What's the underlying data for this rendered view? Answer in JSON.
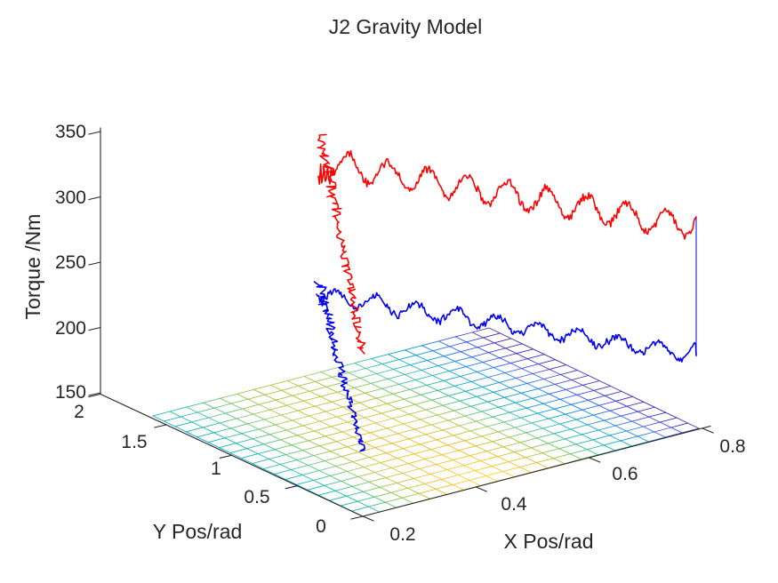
{
  "title": "J2 Gravity Model",
  "axes": {
    "x": {
      "label": "X Pos/rad",
      "ticks": [
        "0.2",
        "0.4",
        "0.6",
        "0.8"
      ]
    },
    "y": {
      "label": "Y Pos/rad",
      "ticks": [
        "2",
        "1.5",
        "1",
        "0.5",
        "0"
      ]
    },
    "z": {
      "label": "Torque /Nm",
      "ticks": [
        "350",
        "300",
        "250",
        "200",
        "150"
      ]
    }
  },
  "colors": {
    "background": "#ffffff",
    "axis": "#262626",
    "red_trace": "#ff0000",
    "blue_trace": "#0000ee",
    "colormap": "parula"
  },
  "chart_data": {
    "type": "line",
    "projection": "3d",
    "title": "J2 Gravity Model",
    "xlabel": "X Pos/rad",
    "ylabel": "Y Pos/rad",
    "zlabel": "Torque /Nm",
    "xlim": [
      0.2,
      0.8
    ],
    "ylim": [
      0,
      2
    ],
    "zlim": [
      150,
      350
    ],
    "x_ticks": [
      0.2,
      0.4,
      0.6,
      0.8
    ],
    "y_ticks": [
      0,
      0.5,
      1,
      1.5,
      2
    ],
    "z_ticks": [
      150,
      200,
      250,
      300,
      350
    ],
    "grid": false,
    "legend": null,
    "series": [
      {
        "name": "red-torque-trace",
        "color": "#ff0000",
        "description": "Noisy measured torque, ~9 oscillation bumps drifting downward; starts with a large vertical transient near x=0.25 reaching ~350 Nm and a tail sweeping down to the surface",
        "x": [
          0.25,
          0.3,
          0.35,
          0.4,
          0.45,
          0.5,
          0.55,
          0.6,
          0.65,
          0.7,
          0.75,
          0.8
        ],
        "apparent_torque_nm": [
          333,
          325,
          330,
          320,
          326,
          316,
          321,
          311,
          315,
          305,
          297,
          308
        ],
        "oscillation_cycles": 9.4,
        "noise_amplitude_nm": 9
      },
      {
        "name": "blue-torque-trace",
        "color": "#0000ee",
        "description": "Noisy measured torque, smaller bumps drifting downward; start transient near x=0.25 and a tail sweeping down through the surface; vertical connector at x=0.8 jumps up to the red trace end",
        "x": [
          0.25,
          0.3,
          0.35,
          0.4,
          0.45,
          0.5,
          0.55,
          0.6,
          0.65,
          0.7,
          0.75,
          0.8
        ],
        "apparent_torque_nm": [
          229,
          224,
          227,
          220,
          224,
          216,
          219,
          212,
          214,
          206,
          200,
          209
        ],
        "oscillation_cycles": 9.4,
        "noise_amplitude_nm": 7
      }
    ],
    "surface": {
      "name": "j2-gravity-model-surface",
      "colormap": "parula",
      "x_range": [
        0.2,
        0.8
      ],
      "y_range": [
        0,
        1.75
      ],
      "grid_cells": [
        20,
        19
      ],
      "description": "Near-planar wireframe mesh at z ~ 150-170 Nm; color value is cyan at the x=0.2 edge, peaks yellow/orange near x~0.4, and falls to dark blue/purple at the x=0.8 corner"
    }
  }
}
